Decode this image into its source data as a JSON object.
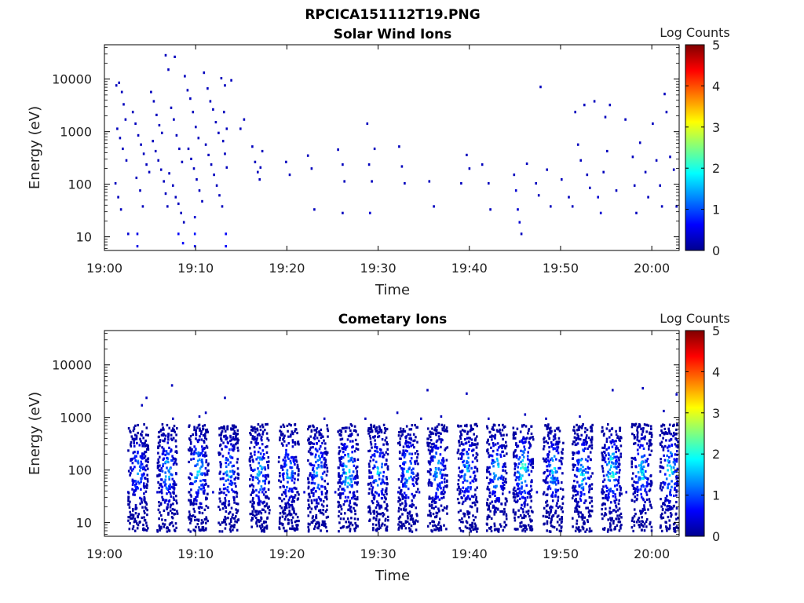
{
  "figure": {
    "title": "RPCICA151112T19.PNG"
  },
  "colors": {
    "colormap": [
      "#00008f",
      "#0000ff",
      "#00ffff",
      "#ffff00",
      "#ff0000",
      "#800000"
    ],
    "axes": "#000000"
  },
  "chart_data": [
    {
      "type": "heatmap",
      "title": "Solar Wind Ions",
      "xlabel": "Time",
      "ylabel": "Energy (eV)",
      "x_ticks": [
        "19:00",
        "19:10",
        "19:20",
        "19:30",
        "19:40",
        "19:50",
        "20:00"
      ],
      "x_tick_minutes": [
        0,
        10,
        20,
        30,
        40,
        50,
        60
      ],
      "xlim_minutes": [
        0,
        63
      ],
      "y_ticks": [
        "10",
        "100",
        "1000",
        "10000"
      ],
      "y_tick_values": [
        10,
        100,
        1000,
        10000
      ],
      "yscale": "log",
      "ylim": [
        5.5,
        45000
      ],
      "colorbar": {
        "label": "Log Counts",
        "ticks": [
          "0",
          "1",
          "2",
          "3",
          "4",
          "5"
        ],
        "range": [
          0,
          5
        ]
      },
      "points": [
        [
          1.2,
          8000,
          0.3
        ],
        [
          1.5,
          9000,
          0.3
        ],
        [
          1.8,
          6000,
          0.3
        ],
        [
          2.0,
          3500,
          0.3
        ],
        [
          2.2,
          1800,
          0.3
        ],
        [
          1.3,
          1200,
          0.3
        ],
        [
          1.6,
          800,
          0.3
        ],
        [
          1.9,
          500,
          0.3
        ],
        [
          2.3,
          300,
          0.3
        ],
        [
          1.1,
          110,
          0.3
        ],
        [
          1.4,
          60,
          0.3
        ],
        [
          1.7,
          35,
          0.3
        ],
        [
          2.5,
          12,
          0.4
        ],
        [
          3.0,
          2500,
          0.3
        ],
        [
          3.3,
          1500,
          0.3
        ],
        [
          3.6,
          900,
          0.3
        ],
        [
          3.9,
          600,
          0.3
        ],
        [
          4.2,
          400,
          0.3
        ],
        [
          4.5,
          250,
          0.3
        ],
        [
          4.8,
          180,
          0.3
        ],
        [
          3.4,
          140,
          0.3
        ],
        [
          3.8,
          80,
          0.3
        ],
        [
          4.1,
          40,
          0.3
        ],
        [
          3.5,
          12,
          0.5
        ],
        [
          3.5,
          7,
          0.5
        ],
        [
          5.0,
          6000,
          0.3
        ],
        [
          5.3,
          4000,
          0.3
        ],
        [
          5.6,
          2200,
          0.3
        ],
        [
          5.9,
          1400,
          0.3
        ],
        [
          6.2,
          1000,
          0.3
        ],
        [
          5.2,
          700,
          0.3
        ],
        [
          5.5,
          450,
          0.3
        ],
        [
          5.8,
          300,
          0.3
        ],
        [
          6.1,
          200,
          0.3
        ],
        [
          6.4,
          120,
          0.3
        ],
        [
          6.6,
          70,
          0.3
        ],
        [
          6.8,
          40,
          0.3
        ],
        [
          6.6,
          30000,
          0.3
        ],
        [
          7.6,
          28000,
          0.3
        ],
        [
          6.9,
          16000,
          0.3
        ],
        [
          7.2,
          3000,
          0.3
        ],
        [
          7.5,
          1800,
          0.3
        ],
        [
          7.8,
          900,
          0.3
        ],
        [
          8.1,
          500,
          0.3
        ],
        [
          8.4,
          280,
          0.3
        ],
        [
          7.0,
          170,
          0.3
        ],
        [
          7.4,
          100,
          0.3
        ],
        [
          7.7,
          60,
          0.3
        ],
        [
          8.0,
          45,
          0.3
        ],
        [
          8.3,
          30,
          0.3
        ],
        [
          8.6,
          20,
          0.3
        ],
        [
          8.0,
          12,
          0.6
        ],
        [
          8.5,
          8,
          0.6
        ],
        [
          8.7,
          12000,
          0.3
        ],
        [
          9.0,
          6500,
          0.3
        ],
        [
          9.3,
          4500,
          0.3
        ],
        [
          9.6,
          2500,
          0.3
        ],
        [
          9.9,
          1300,
          0.3
        ],
        [
          10.2,
          800,
          0.3
        ],
        [
          9.1,
          500,
          0.3
        ],
        [
          9.4,
          320,
          0.3
        ],
        [
          9.7,
          210,
          0.3
        ],
        [
          10.0,
          130,
          0.3
        ],
        [
          10.3,
          80,
          0.3
        ],
        [
          10.6,
          50,
          0.3
        ],
        [
          9.8,
          25,
          0.4
        ],
        [
          9.8,
          12,
          0.7
        ],
        [
          9.8,
          7,
          0.7
        ],
        [
          10.8,
          14000,
          0.3
        ],
        [
          11.2,
          7000,
          0.3
        ],
        [
          11.5,
          4000,
          0.3
        ],
        [
          11.8,
          2800,
          0.3
        ],
        [
          12.1,
          1600,
          0.3
        ],
        [
          12.4,
          1000,
          0.3
        ],
        [
          11.0,
          600,
          0.3
        ],
        [
          11.3,
          380,
          0.3
        ],
        [
          11.6,
          250,
          0.3
        ],
        [
          11.9,
          160,
          0.3
        ],
        [
          12.2,
          100,
          0.3
        ],
        [
          12.5,
          65,
          0.3
        ],
        [
          12.8,
          40,
          0.3
        ],
        [
          13.0,
          2500,
          0.3
        ],
        [
          13.3,
          1200,
          0.3
        ],
        [
          12.9,
          700,
          0.3
        ],
        [
          13.1,
          400,
          0.3
        ],
        [
          13.3,
          220,
          0.3
        ],
        [
          12.7,
          11000,
          0.3
        ],
        [
          13.1,
          8000,
          0.3
        ],
        [
          13.8,
          10000,
          0.3
        ],
        [
          13.2,
          12,
          0.6
        ],
        [
          13.2,
          7,
          0.6
        ],
        [
          14.8,
          1200,
          0.3
        ],
        [
          15.2,
          1800,
          0.3
        ],
        [
          16.1,
          550,
          0.3
        ],
        [
          16.4,
          280,
          0.3
        ],
        [
          16.7,
          180,
          0.3
        ],
        [
          16.9,
          130,
          0.3
        ],
        [
          17.2,
          450,
          0.3
        ],
        [
          17.0,
          220,
          0.3
        ],
        [
          19.8,
          280,
          0.3
        ],
        [
          20.2,
          160,
          0.3
        ],
        [
          22.2,
          370,
          0.3
        ],
        [
          22.6,
          210,
          0.3
        ],
        [
          22.9,
          35,
          0.3
        ],
        [
          25.5,
          480,
          0.3
        ],
        [
          26.0,
          250,
          0.3
        ],
        [
          26.2,
          120,
          0.3
        ],
        [
          26.0,
          30,
          0.3
        ],
        [
          28.7,
          1500,
          0.3
        ],
        [
          28.9,
          250,
          0.3
        ],
        [
          29.2,
          120,
          0.3
        ],
        [
          29.0,
          30,
          0.4
        ],
        [
          29.5,
          500,
          0.3
        ],
        [
          32.2,
          550,
          0.3
        ],
        [
          32.5,
          230,
          0.3
        ],
        [
          32.8,
          110,
          0.3
        ],
        [
          35.5,
          120,
          0.3
        ],
        [
          36.0,
          40,
          0.3
        ],
        [
          37.3,
          6,
          0.3
        ],
        [
          39.0,
          110,
          0.3
        ],
        [
          39.6,
          380,
          0.3
        ],
        [
          39.9,
          210,
          0.3
        ],
        [
          41.3,
          250,
          0.3
        ],
        [
          42.0,
          110,
          0.3
        ],
        [
          42.2,
          35,
          0.3
        ],
        [
          44.8,
          160,
          0.3
        ],
        [
          45.0,
          80,
          0.4
        ],
        [
          45.2,
          35,
          0.4
        ],
        [
          45.4,
          20,
          0.4
        ],
        [
          45.6,
          12,
          0.3
        ],
        [
          46.2,
          260,
          0.3
        ],
        [
          47.2,
          110,
          0.3
        ],
        [
          47.5,
          65,
          0.3
        ],
        [
          47.7,
          7500,
          0.3
        ],
        [
          48.4,
          200,
          0.3
        ],
        [
          48.8,
          40,
          0.3
        ],
        [
          50.0,
          130,
          0.3
        ],
        [
          50.8,
          60,
          0.3
        ],
        [
          51.2,
          40,
          0.3
        ],
        [
          51.5,
          2500,
          0.3
        ],
        [
          51.8,
          600,
          0.3
        ],
        [
          52.1,
          300,
          0.3
        ],
        [
          52.5,
          3400,
          0.3
        ],
        [
          52.8,
          160,
          0.3
        ],
        [
          53.1,
          90,
          0.3
        ],
        [
          53.6,
          4000,
          0.3
        ],
        [
          54.0,
          60,
          0.4
        ],
        [
          54.3,
          30,
          0.4
        ],
        [
          54.6,
          180,
          0.3
        ],
        [
          55.0,
          450,
          0.3
        ],
        [
          55.3,
          3400,
          0.3
        ],
        [
          54.8,
          2000,
          0.3
        ],
        [
          56.0,
          80,
          0.3
        ],
        [
          57.0,
          1800,
          0.3
        ],
        [
          57.8,
          350,
          0.3
        ],
        [
          58.0,
          100,
          0.3
        ],
        [
          58.2,
          30,
          0.3
        ],
        [
          58.6,
          650,
          0.3
        ],
        [
          59.2,
          180,
          0.3
        ],
        [
          59.5,
          60,
          0.3
        ],
        [
          60.0,
          1500,
          0.3
        ],
        [
          60.4,
          300,
          0.3
        ],
        [
          60.8,
          100,
          0.3
        ],
        [
          61.0,
          40,
          0.3
        ],
        [
          61.3,
          5500,
          0.3
        ],
        [
          61.5,
          2500,
          0.3
        ],
        [
          61.9,
          350,
          0.3
        ],
        [
          62.3,
          200,
          0.3
        ],
        [
          62.6,
          40,
          0.3
        ]
      ]
    },
    {
      "type": "heatmap",
      "title": "Cometary Ions",
      "xlabel": "Time",
      "ylabel": "Energy (eV)",
      "x_ticks": [
        "19:00",
        "19:10",
        "19:20",
        "19:30",
        "19:40",
        "19:50",
        "20:00"
      ],
      "x_tick_minutes": [
        0,
        10,
        20,
        30,
        40,
        50,
        60
      ],
      "xlim_minutes": [
        0,
        63
      ],
      "y_ticks": [
        "10",
        "100",
        "1000",
        "10000"
      ],
      "y_tick_values": [
        10,
        100,
        1000,
        10000
      ],
      "yscale": "log",
      "ylim": [
        5.5,
        45000
      ],
      "colorbar": {
        "label": "Log Counts",
        "ticks": [
          "0",
          "1",
          "2",
          "3",
          "4",
          "5"
        ],
        "range": [
          0,
          5
        ]
      },
      "points": [
        [
          4.0,
          1800,
          0.3
        ],
        [
          4.5,
          2500,
          0.3
        ],
        [
          7.3,
          4300,
          0.3
        ],
        [
          7.4,
          1000,
          0.3
        ],
        [
          10.3,
          1100,
          0.3
        ],
        [
          11.0,
          1300,
          0.3
        ],
        [
          13.1,
          2500,
          0.3
        ],
        [
          24.0,
          1000,
          0.3
        ],
        [
          28.5,
          1000,
          0.3
        ],
        [
          32.0,
          1300,
          0.3
        ],
        [
          34.6,
          1000,
          0.3
        ],
        [
          35.3,
          3500,
          0.3
        ],
        [
          36.8,
          1100,
          0.3
        ],
        [
          39.6,
          3000,
          0.3
        ],
        [
          42.0,
          1000,
          0.3
        ],
        [
          46.0,
          1200,
          0.3
        ],
        [
          48.3,
          1000,
          0.3
        ],
        [
          52.0,
          1100,
          0.3
        ],
        [
          55.6,
          3500,
          0.3
        ],
        [
          58.9,
          3800,
          0.3
        ],
        [
          61.2,
          1400,
          0.3
        ],
        [
          62.6,
          2900,
          0.3
        ],
        [
          2.5,
          40,
          0.4
        ],
        [
          5.7,
          40,
          0.4
        ],
        [
          7.5,
          40,
          0.4
        ],
        [
          9.2,
          40,
          0.4
        ],
        [
          11.8,
          40,
          0.4
        ],
        [
          14.2,
          40,
          0.4
        ],
        [
          16.2,
          40,
          0.4
        ],
        [
          19.7,
          40,
          0.4
        ],
        [
          21.8,
          40,
          0.4
        ],
        [
          25.2,
          40,
          0.4
        ],
        [
          26.8,
          40,
          0.4
        ],
        [
          29.6,
          40,
          0.4
        ],
        [
          32.1,
          40,
          0.4
        ],
        [
          34.4,
          40,
          0.4
        ],
        [
          37.2,
          40,
          0.4
        ],
        [
          39.4,
          40,
          0.4
        ],
        [
          42.5,
          40,
          0.4
        ],
        [
          44.3,
          40,
          0.4
        ],
        [
          47.3,
          40,
          0.4
        ],
        [
          49.4,
          40,
          0.4
        ],
        [
          52.1,
          40,
          0.4
        ],
        [
          54.4,
          40,
          0.4
        ],
        [
          57.1,
          40,
          0.4
        ],
        [
          59.3,
          40,
          0.4
        ],
        [
          61.9,
          40,
          0.4
        ]
      ],
      "bursts": [
        {
          "t": 3.6,
          "peak": 1.2
        },
        {
          "t": 6.8,
          "peak": 1.5
        },
        {
          "t": 10.2,
          "peak": 1.8
        },
        {
          "t": 13.5,
          "peak": 1.4
        },
        {
          "t": 16.9,
          "peak": 1.6
        },
        {
          "t": 20.1,
          "peak": 1.3
        },
        {
          "t": 23.3,
          "peak": 1.5
        },
        {
          "t": 26.6,
          "peak": 2.0
        },
        {
          "t": 29.9,
          "peak": 1.5
        },
        {
          "t": 33.2,
          "peak": 1.6
        },
        {
          "t": 36.4,
          "peak": 1.4
        },
        {
          "t": 39.7,
          "peak": 1.5
        },
        {
          "t": 42.9,
          "peak": 1.6
        },
        {
          "t": 45.8,
          "peak": 2.2
        },
        {
          "t": 49.1,
          "peak": 1.5
        },
        {
          "t": 52.3,
          "peak": 1.7
        },
        {
          "t": 55.5,
          "peak": 2.1
        },
        {
          "t": 58.8,
          "peak": 1.6
        },
        {
          "t": 61.9,
          "peak": 1.8
        }
      ]
    }
  ]
}
